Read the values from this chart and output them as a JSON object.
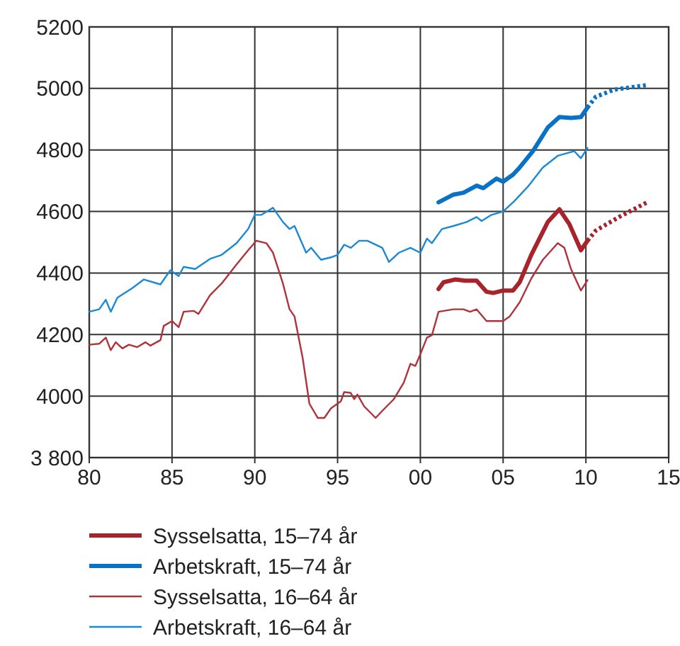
{
  "chart_data": {
    "type": "line",
    "xlim": [
      1980,
      2015
    ],
    "xticks": [
      {
        "value": 1980,
        "label": "80"
      },
      {
        "value": 1985,
        "label": "85"
      },
      {
        "value": 1990,
        "label": "90"
      },
      {
        "value": 1995,
        "label": "95"
      },
      {
        "value": 2000,
        "label": "00"
      },
      {
        "value": 2005,
        "label": "05"
      },
      {
        "value": 2010,
        "label": "10"
      },
      {
        "value": 2015,
        "label": "15"
      }
    ],
    "ylim": [
      3800,
      5200
    ],
    "yticks": [
      {
        "value": 3800,
        "label": "3 800"
      },
      4000,
      4200,
      4400,
      4600,
      4800,
      5000,
      5200
    ],
    "grid": true,
    "legend": "bottom left",
    "marker": "none",
    "series": [
      {
        "name": "Sysselsatta, 15–74 år",
        "color": "#a8232b",
        "line_style": "solid",
        "x": [
          2001.1,
          2001.4,
          2002.1,
          2002.7,
          2003.4,
          2004.0,
          2004.4,
          2005.0,
          2005.6,
          2006.0,
          2006.7,
          2007.7,
          2008.4,
          2009.0,
          2009.7,
          2010.1
        ],
        "values": [
          4348,
          4370,
          4379,
          4375,
          4375,
          4339,
          4335,
          4343,
          4343,
          4370,
          4459,
          4566,
          4607,
          4559,
          4474,
          4505
        ]
      },
      {
        "name": "Arbetskraft, 15–74 år",
        "color": "#0a72c4",
        "line_style": "solid",
        "x": [
          2001.1,
          2002.0,
          2002.6,
          2003.4,
          2003.8,
          2004.6,
          2005.0,
          2005.6,
          2006.0,
          2006.8,
          2007.7,
          2008.4,
          2009.1,
          2009.7,
          2010.1
        ],
        "values": [
          4630,
          4655,
          4661,
          4684,
          4676,
          4707,
          4697,
          4720,
          4743,
          4796,
          4873,
          4907,
          4904,
          4907,
          4938
        ]
      },
      {
        "name": "Sysselsatta, 16–64 år",
        "color": "#b0323a",
        "line_style": "solid",
        "x": [
          1980.0,
          1980.6,
          1981.0,
          1981.3,
          1981.6,
          1982.0,
          1982.4,
          1982.9,
          1983.4,
          1983.7,
          1984.3,
          1984.5,
          1985.0,
          1985.4,
          1985.7,
          1986.3,
          1986.6,
          1987.3,
          1988.0,
          1988.9,
          1989.6,
          1990.1,
          1990.7,
          1991.1,
          1991.7,
          1992.1,
          1992.4,
          1992.9,
          1993.3,
          1993.8,
          1994.2,
          1994.6,
          1995.2,
          1995.4,
          1995.8,
          1996.0,
          1996.2,
          1996.6,
          1997.3,
          1997.7,
          1998.4,
          1999.0,
          1999.4,
          1999.7,
          2000.0,
          2000.4,
          2000.7,
          2001.1,
          2002.0,
          2002.6,
          2003.0,
          2003.4,
          2004.0,
          2005.0,
          2005.4,
          2006.0,
          2006.7,
          2007.4,
          2008.3,
          2008.7,
          2009.1,
          2009.7,
          2010.1
        ],
        "values": [
          4167,
          4170,
          4190,
          4149,
          4175,
          4155,
          4167,
          4159,
          4175,
          4164,
          4182,
          4228,
          4244,
          4224,
          4274,
          4277,
          4267,
          4328,
          4366,
          4428,
          4474,
          4505,
          4497,
          4466,
          4366,
          4282,
          4259,
          4121,
          3975,
          3929,
          3929,
          3960,
          3983,
          4013,
          4010,
          3990,
          4005,
          3967,
          3929,
          3952,
          3990,
          4044,
          4105,
          4098,
          4136,
          4190,
          4198,
          4274,
          4282,
          4282,
          4274,
          4282,
          4244,
          4244,
          4259,
          4305,
          4382,
          4443,
          4497,
          4482,
          4413,
          4343,
          4377
        ]
      },
      {
        "name": "Arbetskraft, 16–64 år",
        "color": "#1a8ad6",
        "line_style": "solid",
        "x": [
          1980.0,
          1980.6,
          1981.0,
          1981.3,
          1981.7,
          1982.6,
          1983.3,
          1984.3,
          1984.9,
          1985.4,
          1985.7,
          1986.4,
          1987.3,
          1988.0,
          1988.9,
          1989.6,
          1990.0,
          1990.4,
          1991.1,
          1991.7,
          1992.1,
          1992.4,
          1993.1,
          1993.4,
          1994.0,
          1994.6,
          1995.0,
          1995.4,
          1995.8,
          1996.3,
          1996.8,
          1997.7,
          1998.1,
          1998.7,
          1999.4,
          2000.0,
          2000.4,
          2000.7,
          2001.3,
          2002.0,
          2002.8,
          2003.4,
          2003.7,
          2004.3,
          2005.0,
          2005.7,
          2006.5,
          2007.4,
          2008.3,
          2009.3,
          2009.7,
          2010.1
        ],
        "values": [
          4274,
          4282,
          4313,
          4274,
          4320,
          4351,
          4379,
          4363,
          4409,
          4390,
          4420,
          4413,
          4446,
          4459,
          4497,
          4543,
          4589,
          4589,
          4612,
          4566,
          4543,
          4553,
          4466,
          4482,
          4443,
          4451,
          4459,
          4492,
          4482,
          4505,
          4505,
          4482,
          4436,
          4466,
          4482,
          4466,
          4512,
          4497,
          4543,
          4553,
          4566,
          4582,
          4569,
          4589,
          4600,
          4635,
          4681,
          4743,
          4781,
          4796,
          4773,
          4807
        ]
      },
      {
        "color": "#a8232b",
        "line_style": "dotted",
        "x": [
          2010.1,
          2010.6,
          2012.0,
          2013.7
        ],
        "values": [
          4505,
          4538,
          4582,
          4630
        ]
      },
      {
        "color": "#0a72c4",
        "line_style": "dotted",
        "x": [
          2010.1,
          2010.6,
          2011.7,
          2013.7
        ],
        "values": [
          4938,
          4973,
          4996,
          5011
        ]
      }
    ]
  }
}
